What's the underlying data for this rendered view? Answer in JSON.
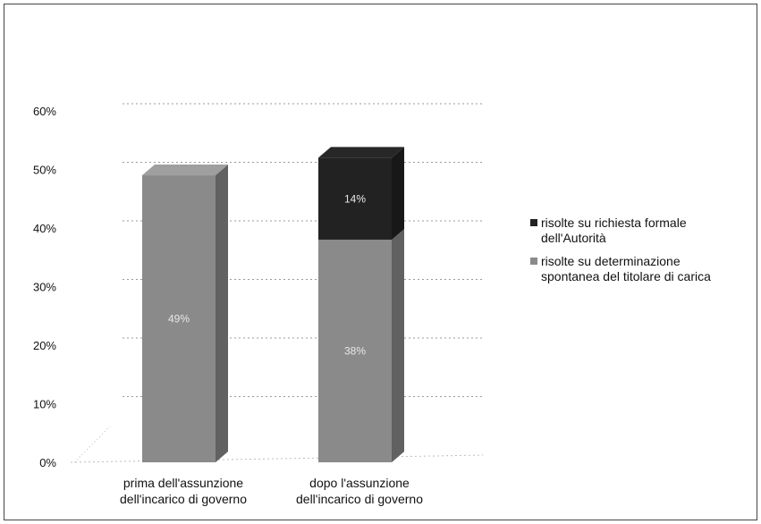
{
  "chart_data": {
    "type": "bar",
    "stacked": true,
    "style": "3d-column",
    "categories": [
      "prima dell'assunzione\ndell'incarico di governo",
      "dopo l'assunzione\ndell'incarico di governo"
    ],
    "series": [
      {
        "name": "risolte su determinazione\nspontanea del titolare di carica",
        "color": "#8a8a8a",
        "values": [
          49,
          38
        ],
        "labels": [
          "49%",
          "38%"
        ]
      },
      {
        "name": "risolte su richiesta formale\ndell'Autorità",
        "color": "#222222",
        "values": [
          0,
          14
        ],
        "labels": [
          "",
          "14%"
        ]
      }
    ],
    "y_ticks": [
      "0%",
      "10%",
      "20%",
      "30%",
      "40%",
      "50%",
      "60%"
    ],
    "ylim": [
      0,
      60
    ],
    "legend_position": "right",
    "legend_order": [
      1,
      0
    ],
    "grid": true,
    "title": "",
    "xlabel": "",
    "ylabel": ""
  }
}
